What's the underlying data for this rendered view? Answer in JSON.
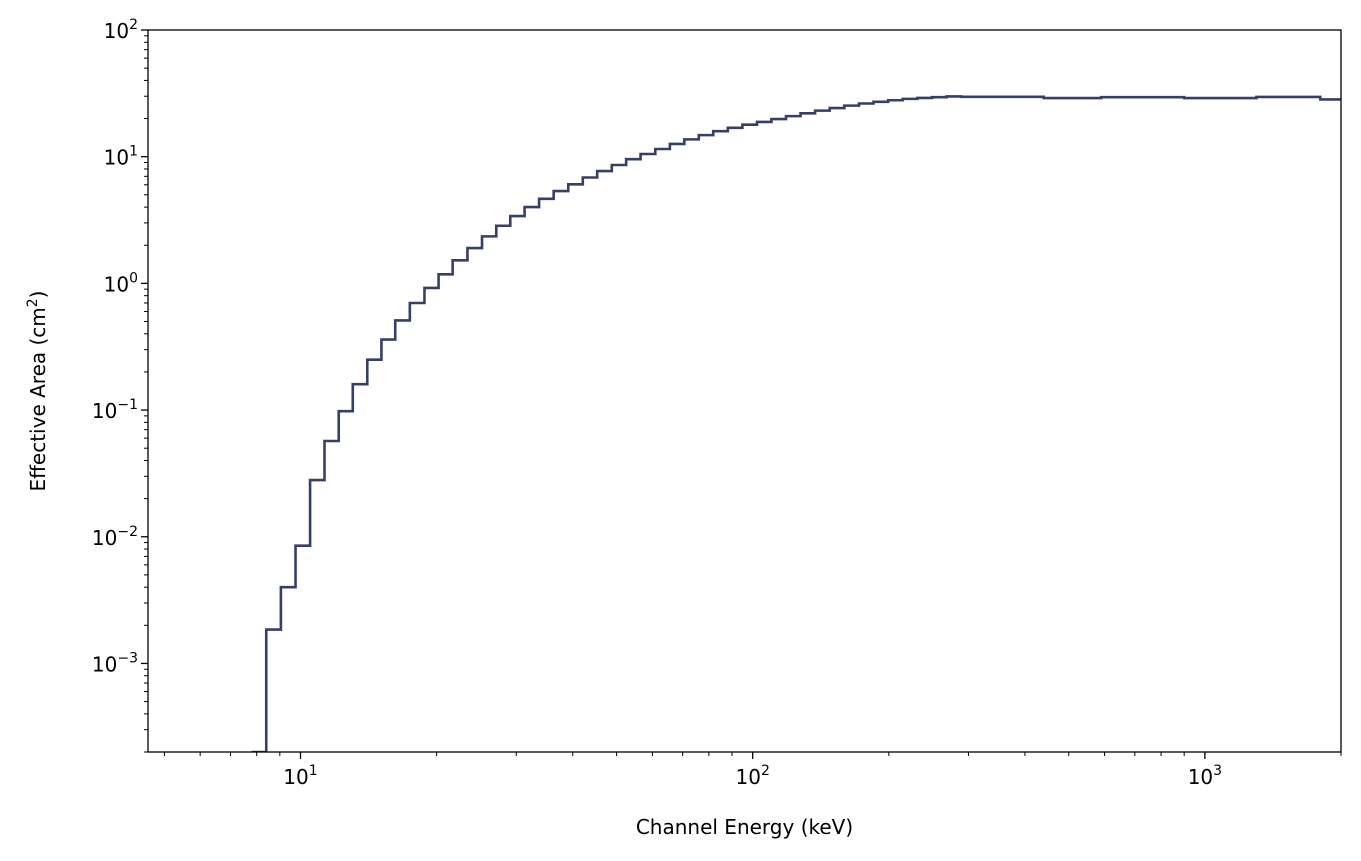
{
  "chart_data": {
    "type": "line",
    "drawstyle": "steps-post",
    "xscale": "log",
    "yscale": "log",
    "xlim": [
      4.6,
      2000
    ],
    "ylim": [
      0.0002,
      100
    ],
    "grid": false,
    "xlabel": "Channel Energy (keV)",
    "ylabel_text": "Effective Area (cm",
    "ylabel_sup": "2",
    "ylabel_close": ")",
    "x_ticks": [
      {
        "value": 10,
        "base": "10",
        "exp": "1"
      },
      {
        "value": 100,
        "base": "10",
        "exp": "2"
      },
      {
        "value": 1000,
        "base": "10",
        "exp": "3"
      }
    ],
    "y_ticks": [
      {
        "value": 0.001,
        "base": "10",
        "exp": "−3"
      },
      {
        "value": 0.01,
        "base": "10",
        "exp": "−2"
      },
      {
        "value": 0.1,
        "base": "10",
        "exp": "−1"
      },
      {
        "value": 1,
        "base": "10",
        "exp": "0"
      },
      {
        "value": 10,
        "base": "10",
        "exp": "1"
      },
      {
        "value": 100,
        "base": "10",
        "exp": "2"
      }
    ],
    "series": [
      {
        "color": "#363f68",
        "x": [
          7.8,
          8.4,
          9.05,
          9.75,
          10.5,
          11.3,
          12.15,
          13.05,
          14.05,
          15.1,
          16.2,
          17.45,
          18.8,
          20.2,
          21.7,
          23.4,
          25.2,
          27.1,
          29.1,
          31.3,
          33.7,
          36.3,
          39.1,
          42.1,
          45.3,
          48.8,
          52.5,
          56.5,
          60.9,
          65.6,
          70.6,
          76.0,
          81.8,
          88.1,
          94.9,
          102.2,
          110.0,
          118.5,
          127.6,
          137.4,
          148.0,
          159.5,
          171.8,
          185.0,
          199.3,
          214.7,
          231.3,
          249.2,
          268.5,
          289.3,
          440.0,
          590.0,
          900.0,
          1300.0,
          1800.0,
          2000.0
        ],
        "y": [
          0.0002,
          0.00185,
          0.004,
          0.0085,
          0.028,
          0.057,
          0.098,
          0.16,
          0.25,
          0.36,
          0.51,
          0.7,
          0.92,
          1.18,
          1.52,
          1.9,
          2.35,
          2.85,
          3.4,
          4.0,
          4.65,
          5.35,
          6.05,
          6.85,
          7.7,
          8.6,
          9.55,
          10.5,
          11.5,
          12.6,
          13.7,
          14.8,
          15.9,
          16.9,
          17.9,
          18.8,
          19.8,
          20.9,
          22.0,
          23.1,
          24.2,
          25.3,
          26.3,
          27.1,
          27.9,
          28.6,
          29.1,
          29.5,
          29.9,
          29.7,
          29.0,
          29.5,
          29.0,
          29.6,
          28.3,
          28.3
        ]
      }
    ]
  }
}
